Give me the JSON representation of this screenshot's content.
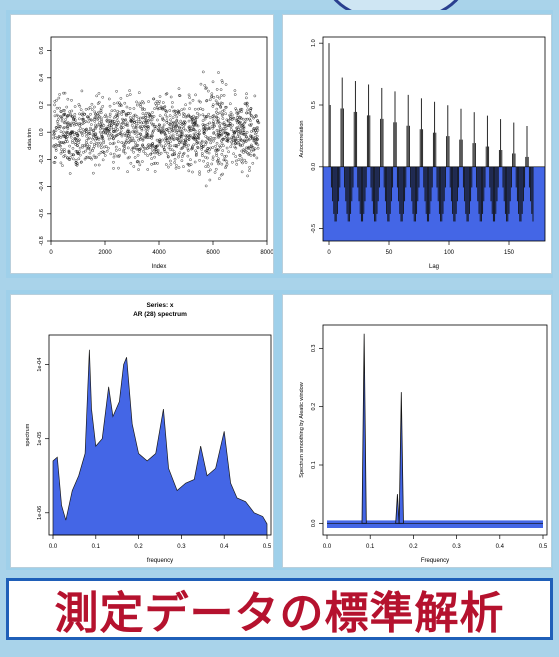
{
  "banner": {
    "title": "測定データの標準解析"
  },
  "colors": {
    "fill_blue": "#4466e6",
    "title_red": "#b5122e",
    "frame_blue": "#1f5fb8"
  },
  "chart_data": [
    {
      "type": "scatter",
      "xlabel": "Index",
      "ylabel": "data.trim",
      "x_ticks": [
        "0",
        "2000",
        "4000",
        "6000",
        "8000"
      ],
      "y_ticks": [
        "-0.8",
        "-0.6",
        "-0.4",
        "-0.2",
        "0.0",
        "0.2",
        "0.4",
        "0.6"
      ],
      "xlim": [
        0,
        8000
      ],
      "ylim": [
        -0.8,
        0.7
      ]
    },
    {
      "type": "bar",
      "xlabel": "Lag",
      "ylabel": "Autocorrelation",
      "x_ticks": [
        "0",
        "50",
        "100",
        "150"
      ],
      "y_ticks": [
        "-0.5",
        "0.0",
        "0.5",
        "1.0"
      ],
      "xlim": [
        0,
        175
      ],
      "ylim": [
        -0.6,
        1.05
      ]
    },
    {
      "type": "area",
      "title": "Series: x",
      "subtitle": "AR (28) spectrum",
      "xlabel": "frequency",
      "ylabel": "spectrum",
      "x_ticks": [
        "0.0",
        "0.1",
        "0.2",
        "0.3",
        "0.4",
        "0.5"
      ],
      "y_ticks": [
        "1e-06",
        "1e-05",
        "1e-04"
      ],
      "xlim": [
        0,
        0.5
      ]
    },
    {
      "type": "area",
      "xlabel": "Frequency",
      "ylabel": "Spectrum smoothing by Aleatic window",
      "x_ticks": [
        "0.0",
        "0.1",
        "0.2",
        "0.3",
        "0.4",
        "0.5"
      ],
      "y_ticks": [
        "0.0",
        "0.1",
        "0.2",
        "0.3"
      ],
      "xlim": [
        0,
        0.5
      ],
      "ylim": [
        -0.02,
        0.34
      ]
    }
  ]
}
